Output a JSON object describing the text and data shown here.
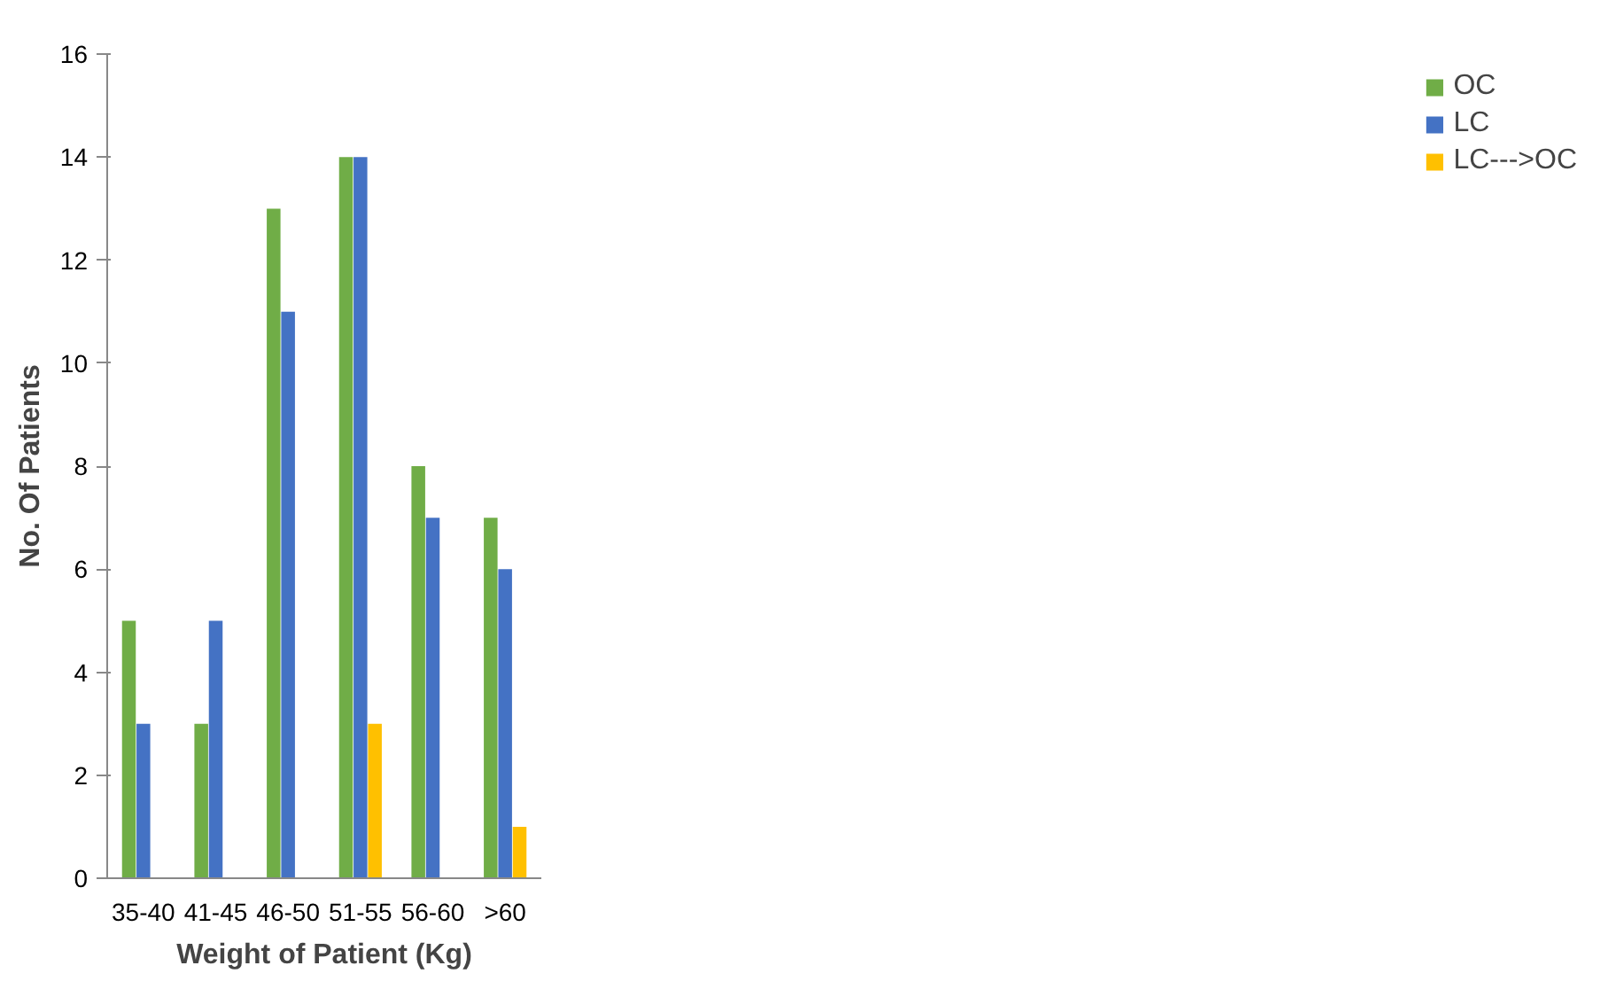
{
  "chart_data": {
    "type": "bar",
    "xlabel": "Weight of Patient (Kg)",
    "ylabel": "No. Of Patients",
    "categories": [
      "35-40",
      "41-45",
      "46-50",
      "51-55",
      "56-60",
      ">60"
    ],
    "series": [
      {
        "name": "OC",
        "color": "#70ad47",
        "values": [
          5,
          3,
          13,
          14,
          8,
          7
        ]
      },
      {
        "name": "LC",
        "color": "#4472c4",
        "values": [
          3,
          5,
          11,
          14,
          7,
          6
        ]
      },
      {
        "name": "LC--->OC",
        "color": "#ffc000",
        "values": [
          null,
          null,
          null,
          3,
          null,
          1
        ]
      }
    ],
    "ylim": [
      0,
      16
    ],
    "yticks": [
      0,
      2,
      4,
      6,
      8,
      10,
      12,
      14,
      16
    ],
    "grid": false,
    "legend": "right"
  }
}
